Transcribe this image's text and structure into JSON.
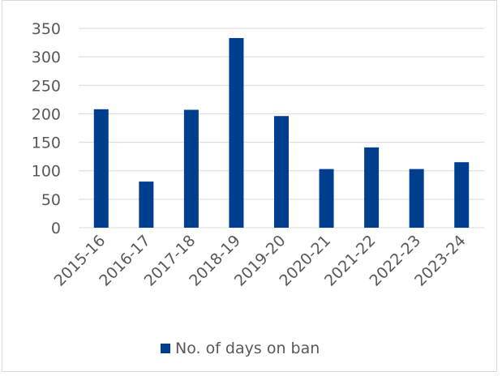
{
  "chart_data": {
    "type": "bar",
    "title": "",
    "xlabel": "",
    "ylabel": "",
    "categories": [
      "2015-16",
      "2016-17",
      "2017-18",
      "2018-19",
      "2019-20",
      "2020-21",
      "2021-22",
      "2022-23",
      "2023-24"
    ],
    "series": [
      {
        "name": "No. of days on ban",
        "values": [
          208,
          81,
          207,
          333,
          196,
          103,
          141,
          103,
          115
        ],
        "color": "#003f8f"
      }
    ],
    "ylim": [
      0,
      350
    ],
    "yticks": [
      0,
      50,
      100,
      150,
      200,
      250,
      300,
      350
    ],
    "grid": true,
    "legend_position": "bottom"
  }
}
